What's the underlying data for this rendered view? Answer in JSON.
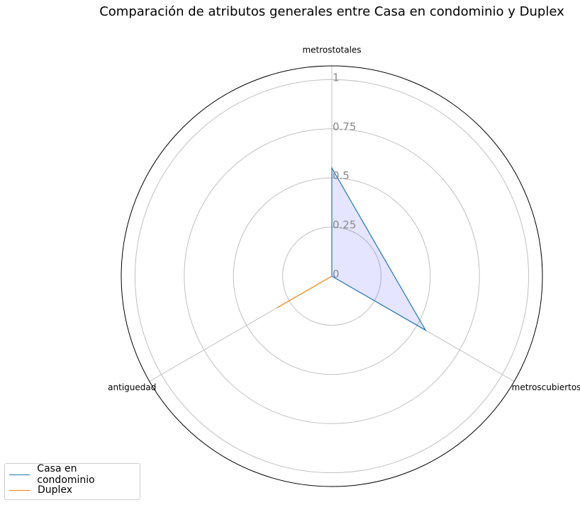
{
  "chart_data": {
    "type": "radar",
    "title": "Comparación de atributos generales entre Casa en condominio y Duplex",
    "axes": [
      "metrostotales",
      "metroscubiertos",
      "antiguedad"
    ],
    "rlim": [
      0,
      1
    ],
    "rticks": [
      "0",
      "0.25",
      "0.5",
      "0.75",
      "1"
    ],
    "rtick_values": [
      0,
      0.25,
      0.5,
      0.75,
      1
    ],
    "grid": true,
    "legend_position": "lower-left",
    "series": [
      {
        "name": "Casa en condominio",
        "values": [
          0.55,
          0.55,
          0.0
        ],
        "color": "#1f77b4",
        "fill": "#0000ff"
      },
      {
        "name": "Duplex",
        "values": [
          0.0,
          0.0,
          0.32
        ],
        "color": "#ff7f0e",
        "fill": "none"
      }
    ]
  }
}
